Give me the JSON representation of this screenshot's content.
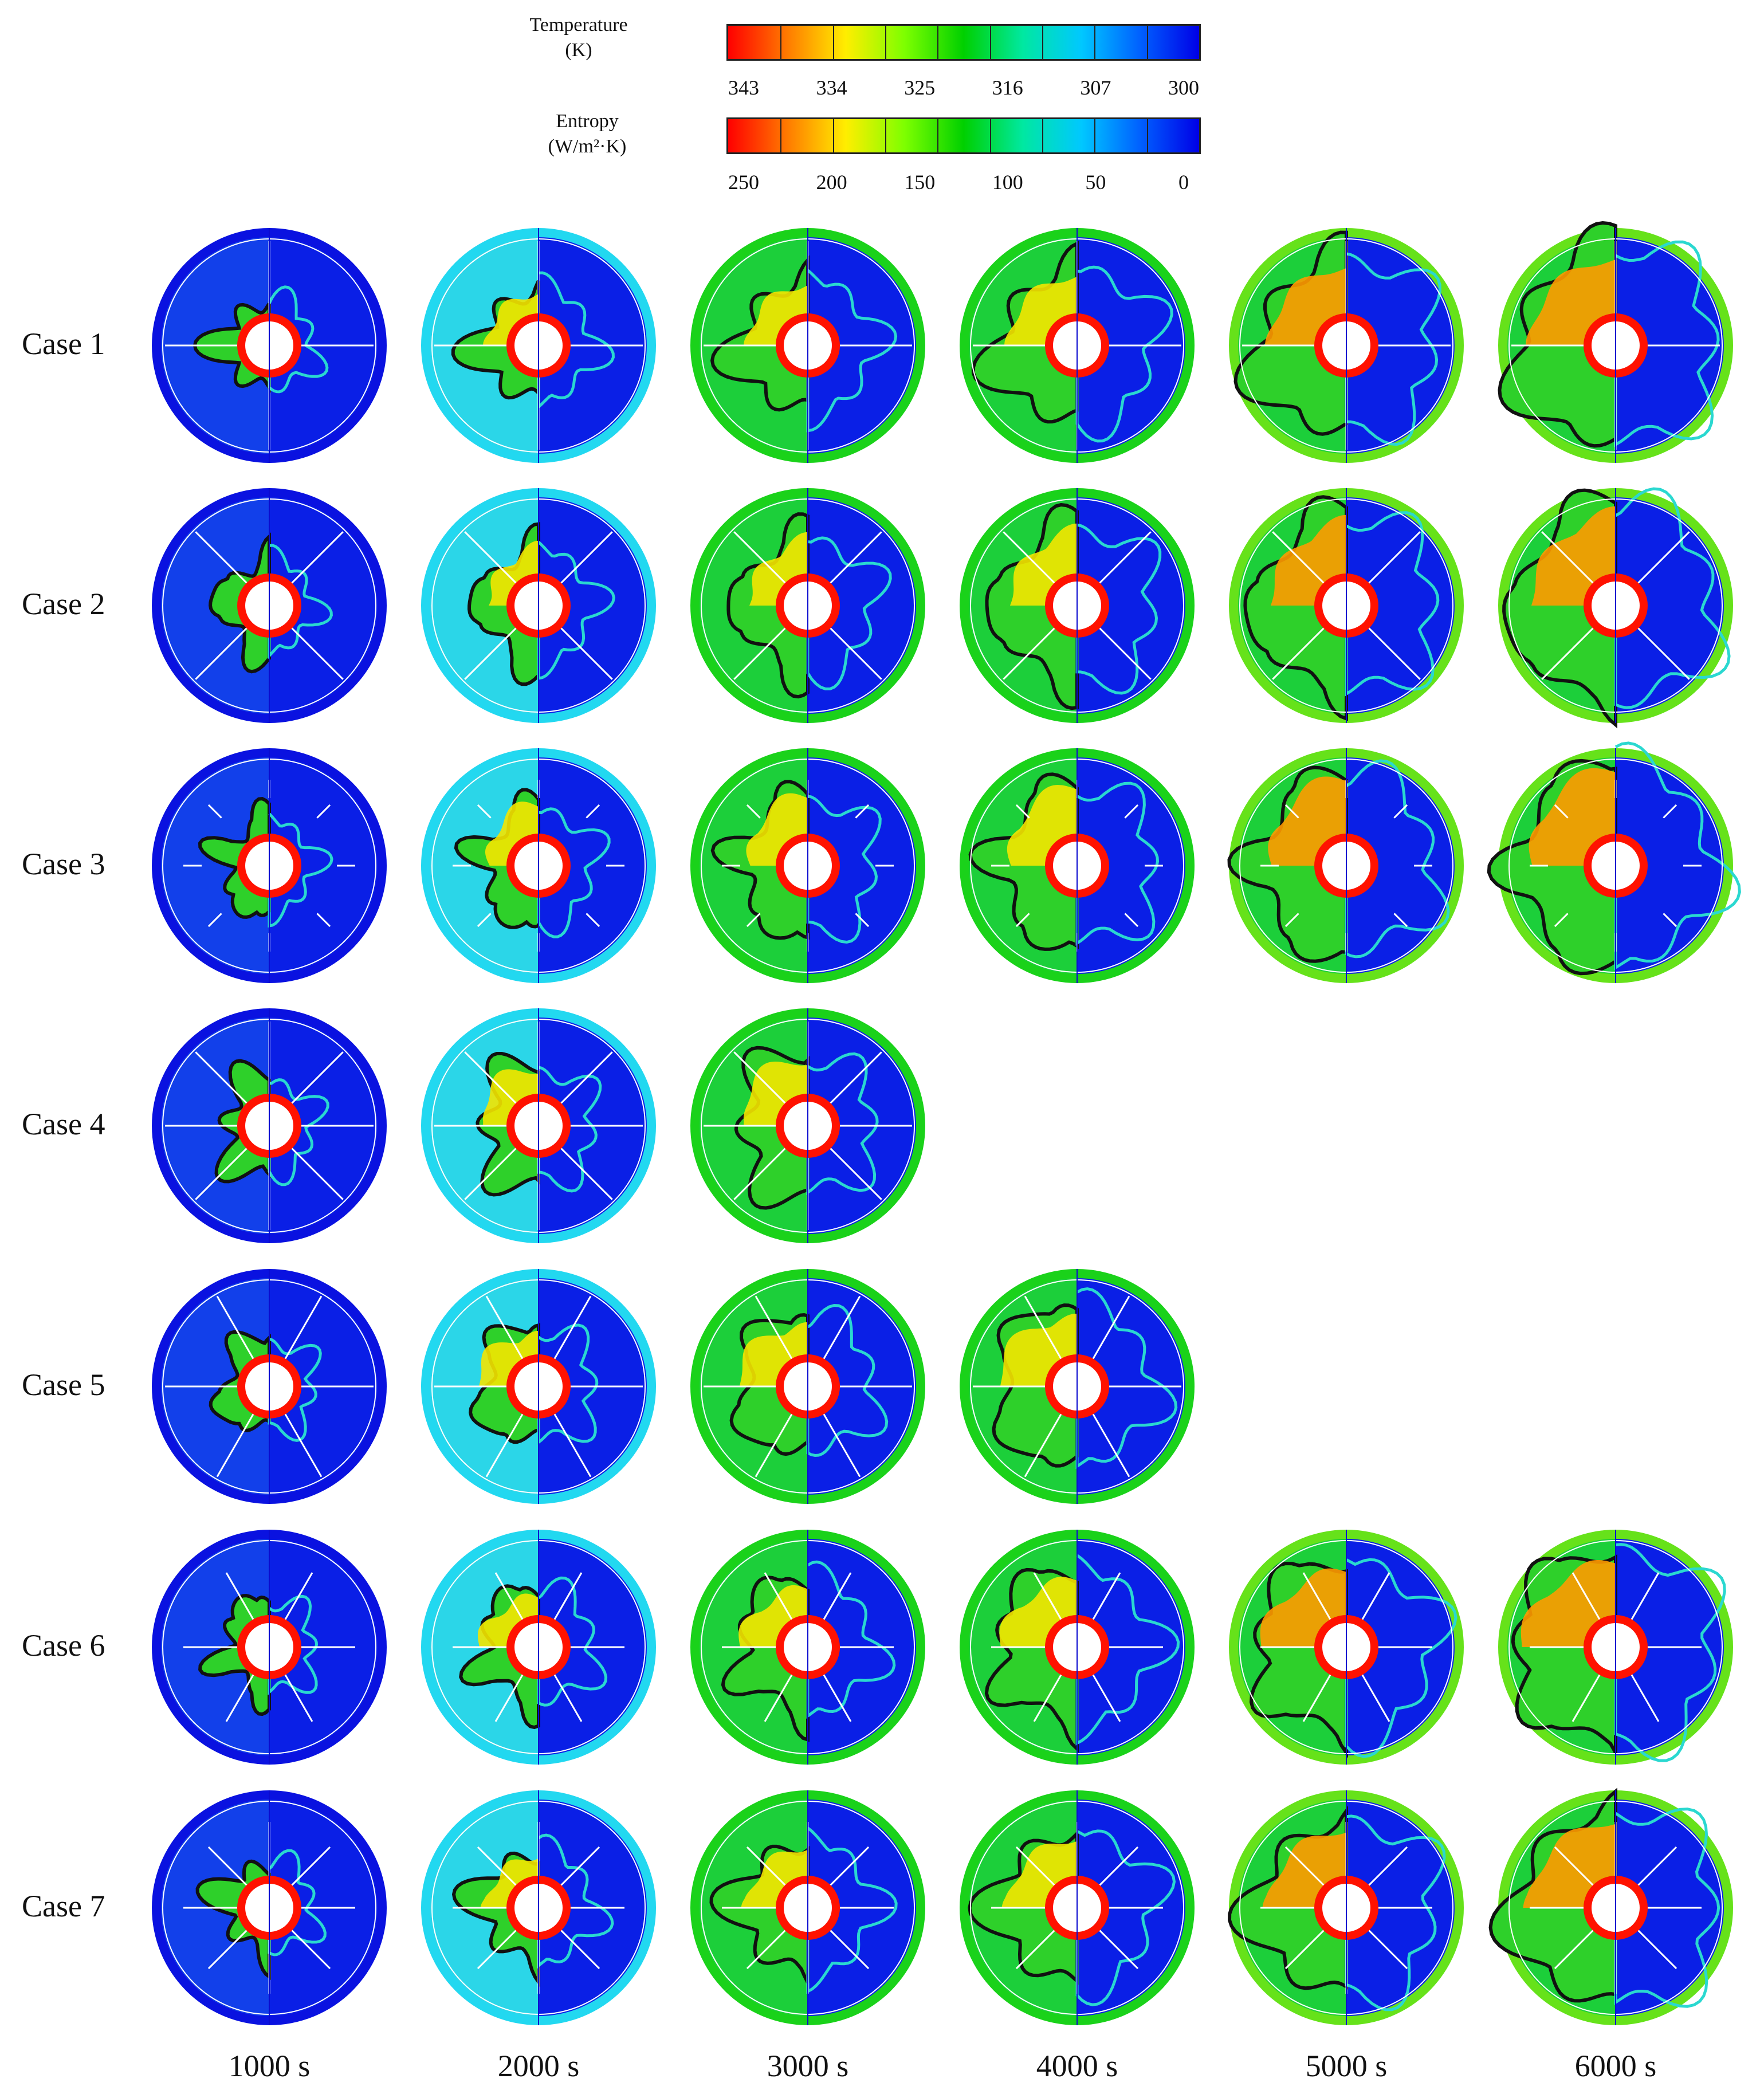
{
  "legend": {
    "temperature": {
      "label_line1": "Temperature",
      "label_line2": "(K)",
      "ticks": [
        "343",
        "334",
        "325",
        "316",
        "307",
        "300"
      ]
    },
    "entropy": {
      "label_line1": "Entropy",
      "label_line2": "(W/m²·K)",
      "ticks": [
        "250",
        "200",
        "150",
        "100",
        "50",
        "0"
      ]
    },
    "colormap": [
      "#ff0000",
      "#ff7a00",
      "#ffee00",
      "#7dff00",
      "#00d000",
      "#00e8a0",
      "#00c8ff",
      "#0060ff",
      "#0000e6"
    ]
  },
  "rows": [
    {
      "label": "Case 1",
      "count": 6
    },
    {
      "label": "Case 2",
      "count": 6
    },
    {
      "label": "Case 3",
      "count": 6
    },
    {
      "label": "Case 4",
      "count": 3
    },
    {
      "label": "Case 5",
      "count": 4
    },
    {
      "label": "Case 6",
      "count": 6
    },
    {
      "label": "Case 7",
      "count": 6
    }
  ],
  "columns": [
    "1000 s",
    "2000 s",
    "3000 s",
    "4000 s",
    "5000 s",
    "6000 s"
  ],
  "colors": {
    "outer_ring_cold": "#0a12e0",
    "background_cold": "#0a1fe6",
    "hot": "#ff1200",
    "warm": "#ff9a00",
    "yellow": "#f4e600",
    "green": "#1ad21a",
    "cyan": "#22d8f0",
    "fin": "#ffffff",
    "interface": "#111111"
  }
}
